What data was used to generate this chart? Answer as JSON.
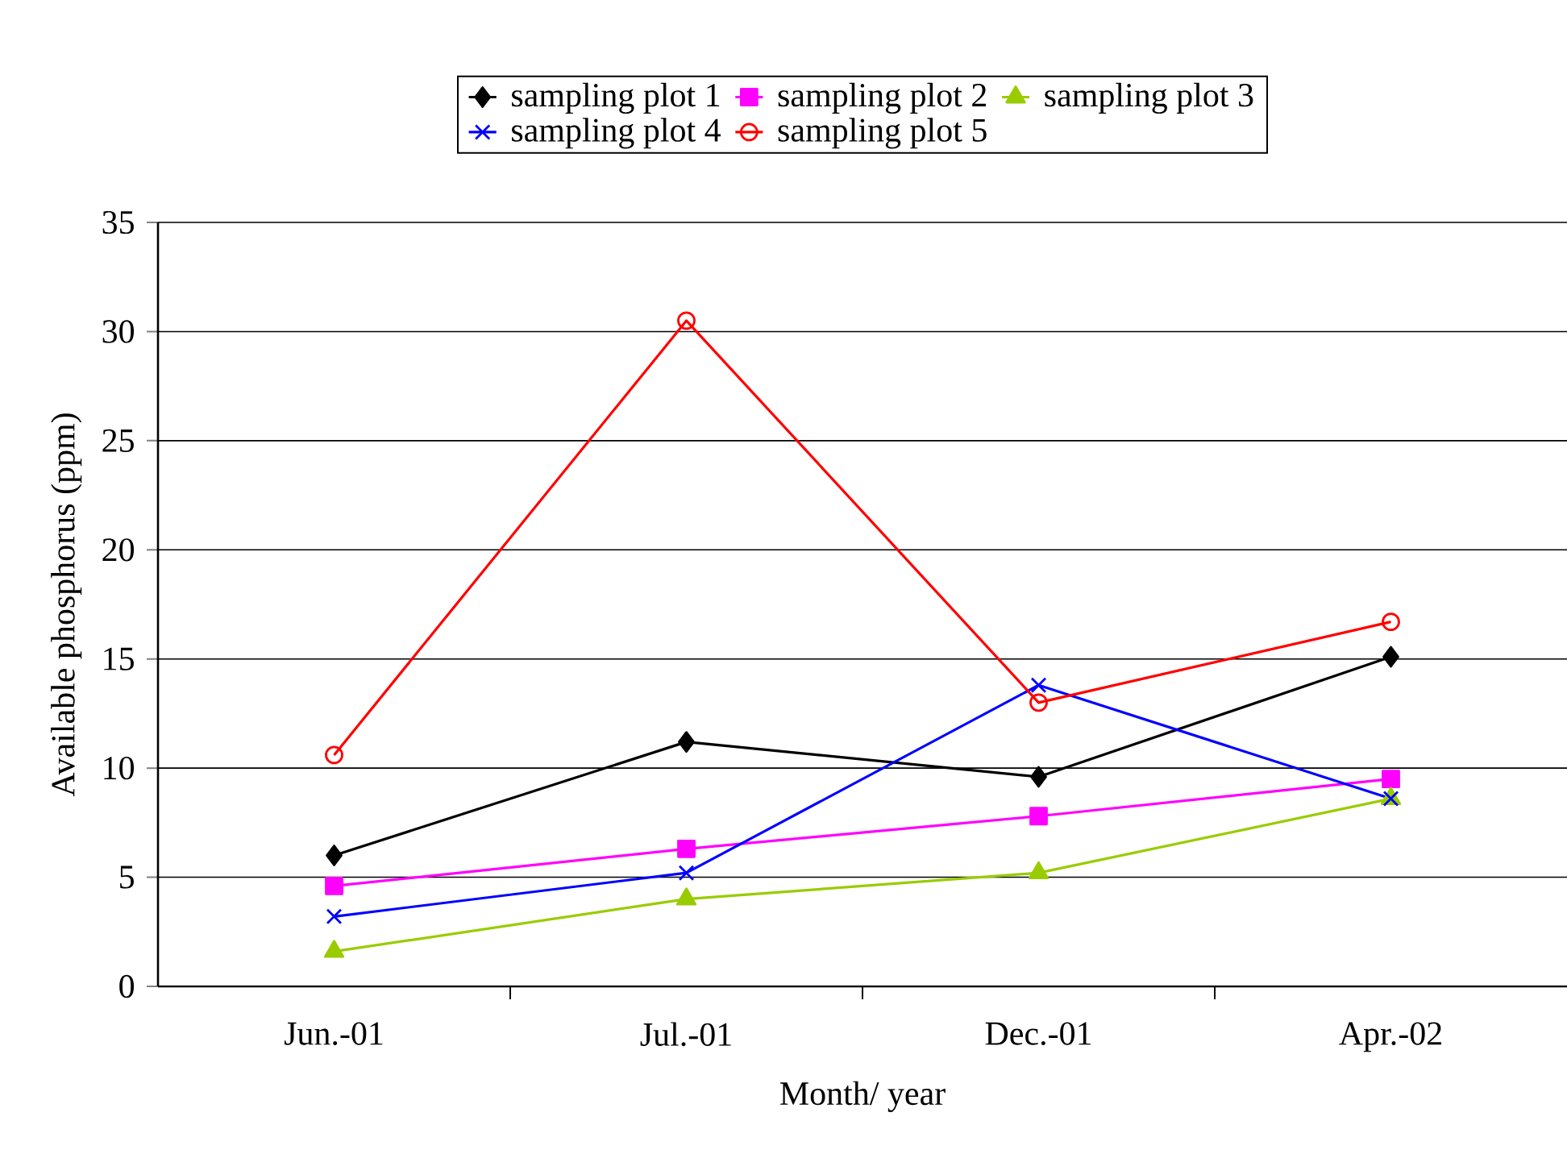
{
  "chart_data": {
    "type": "line",
    "xlabel": "Month/ year",
    "ylabel": "Available phosphorus (ppm)",
    "categories": [
      "Jun.-01",
      "Jul.-01",
      "Dec.-01",
      "Apr.-02"
    ],
    "series": [
      {
        "name": "sampling plot 1",
        "color": "#000000",
        "marker": "diamond",
        "values": [
          6.0,
          11.2,
          9.6,
          15.1
        ]
      },
      {
        "name": "sampling plot 2",
        "color": "#ff00ff",
        "marker": "square",
        "values": [
          4.6,
          6.3,
          7.8,
          9.5
        ]
      },
      {
        "name": "sampling plot 3",
        "color": "#99cc00",
        "marker": "triangle",
        "values": [
          1.6,
          4.0,
          5.2,
          8.6
        ]
      },
      {
        "name": "sampling plot 4",
        "color": "#0000ff",
        "marker": "cross",
        "values": [
          3.2,
          5.2,
          13.8,
          8.6
        ]
      },
      {
        "name": "sampling plot 5",
        "color": "#ff0000",
        "marker": "circle",
        "values": [
          10.6,
          30.5,
          13.0,
          16.7
        ]
      }
    ],
    "ylim": [
      0,
      35
    ],
    "yticks": [
      0,
      5,
      10,
      15,
      20,
      25,
      30,
      35
    ],
    "grid": "y",
    "legend": "top",
    "line_style": "solid"
  }
}
